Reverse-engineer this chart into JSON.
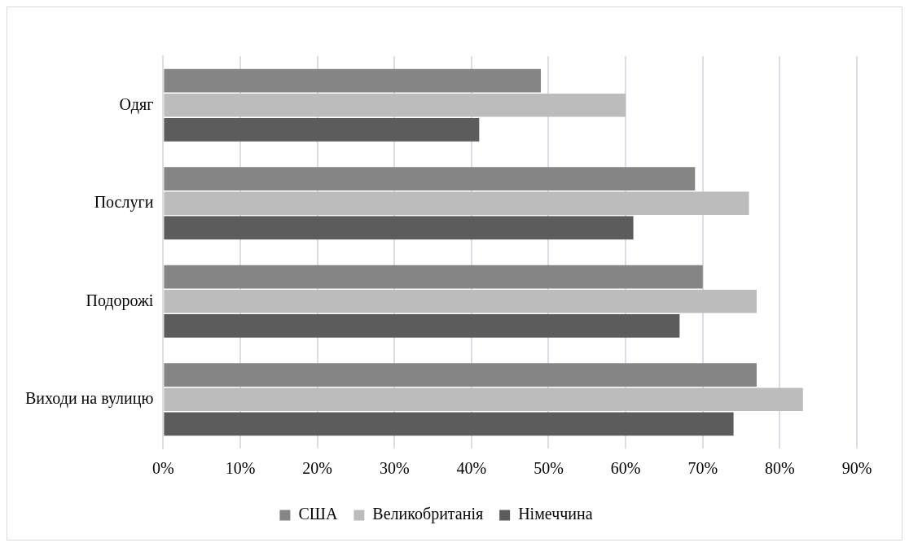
{
  "chart_data": {
    "type": "bar",
    "orientation": "horizontal",
    "categories": [
      "Одяг",
      "Послуги",
      "Подорожі",
      "Виходи на вулицю"
    ],
    "series": [
      {
        "name": "США",
        "color": "#858585",
        "values": [
          49,
          69,
          70,
          77
        ]
      },
      {
        "name": "Великобританія",
        "color": "#bcbcbc",
        "values": [
          60,
          76,
          77,
          83
        ]
      },
      {
        "name": "Німеччина",
        "color": "#5c5c5c",
        "values": [
          41,
          61,
          67,
          74
        ]
      }
    ],
    "xlim": [
      0,
      90
    ],
    "xticks": [
      {
        "value": 0,
        "label": "0%"
      },
      {
        "value": 10,
        "label": "10%"
      },
      {
        "value": 20,
        "label": "20%"
      },
      {
        "value": 30,
        "label": "30%"
      },
      {
        "value": 40,
        "label": "40%"
      },
      {
        "value": 50,
        "label": "50%"
      },
      {
        "value": 60,
        "label": "60%"
      },
      {
        "value": 70,
        "label": "70%"
      },
      {
        "value": 80,
        "label": "80%"
      },
      {
        "value": 90,
        "label": "90%"
      }
    ],
    "grid": "x",
    "legend": "bottom"
  }
}
